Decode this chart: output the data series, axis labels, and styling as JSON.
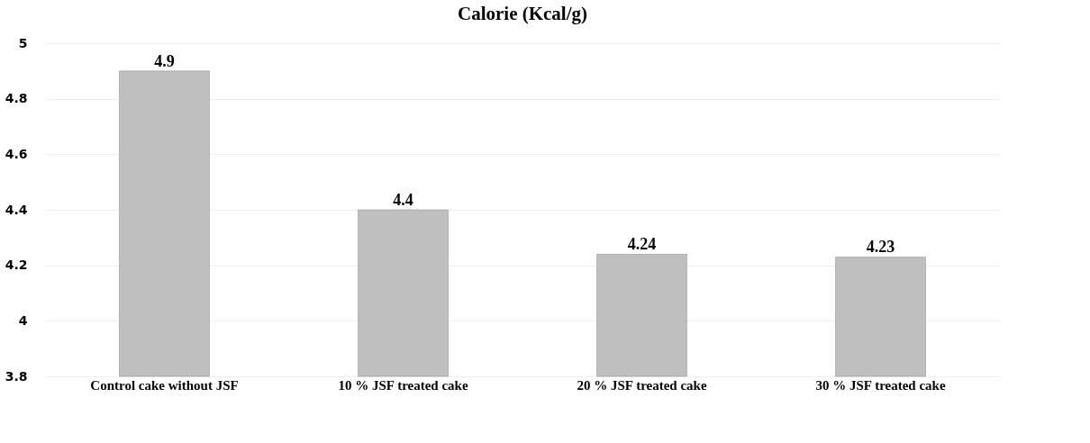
{
  "chart_data": {
    "type": "bar",
    "title": "Calorie (Kcal/g)",
    "categories": [
      "Control cake without JSF",
      "10 % JSF treated cake",
      "20 % JSF treated cake",
      "30  % JSF treated cake"
    ],
    "values": [
      4.9,
      4.4,
      4.24,
      4.23
    ],
    "color": "#bfbfbf",
    "ylim": [
      3.8,
      5
    ],
    "yticks": [
      3.8,
      4,
      4.2,
      4.4,
      4.6,
      4.8,
      5
    ],
    "grid": "y",
    "data_labels": true
  }
}
